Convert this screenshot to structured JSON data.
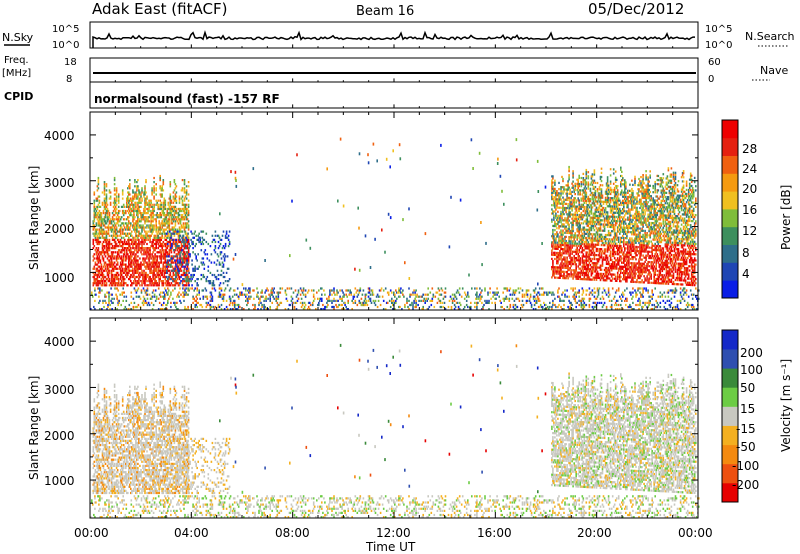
{
  "header": {
    "radar": "Adak East (fitACF)",
    "beam": "Beam 16",
    "date": "05/Dec/2012"
  },
  "top_panels": {
    "nsky_label": "N.Sky",
    "nsearch_label": "N.Search",
    "nsky_ticks": [
      "10^5",
      "10^0"
    ],
    "nsearch_ticks": [
      "10^5",
      "10^0"
    ],
    "freq_label": "Freq.",
    "freq_unit": "[MHz]",
    "freq_ticks": [
      "18",
      "8"
    ],
    "nave_label": "Nave",
    "nave_ticks": [
      "60",
      "0"
    ],
    "cpid_label": "CPID",
    "cpid_text": "normalsound (fast) -157 RF"
  },
  "chart_data": [
    {
      "type": "heatmap",
      "name": "power",
      "ylabel": "Slant Range [km]",
      "y_ticks": [
        "1000",
        "2000",
        "3000",
        "4000"
      ],
      "ylim": [
        180,
        4500
      ],
      "xlim_hours": [
        0,
        24
      ],
      "colorbar": {
        "label": "Power [dB]",
        "ticks": [
          "4",
          "8",
          "12",
          "16",
          "20",
          "24",
          "28"
        ],
        "range": [
          0,
          30
        ],
        "colors": [
          "#0a1ee6",
          "#1f46b4",
          "#2e6e8a",
          "#3d8f5e",
          "#7fbd3a",
          "#f0c020",
          "#f59a10",
          "#f06010",
          "#e52010",
          "#ee0000"
        ]
      }
    },
    {
      "type": "heatmap",
      "name": "velocity",
      "ylabel": "Slant Range [km]",
      "y_ticks": [
        "1000",
        "2000",
        "3000",
        "4000"
      ],
      "ylim": [
        180,
        4500
      ],
      "xlim_hours": [
        0,
        24
      ],
      "colorbar": {
        "label": "Velocity [m s⁻¹]",
        "ticks": [
          "200",
          "100",
          "50",
          "15",
          "-15",
          "-50",
          "-100",
          "-200"
        ],
        "colors": [
          "#1428c8",
          "#2f4fb0",
          "#3a8a3a",
          "#6ccc44",
          "#c8c8c0",
          "#f4b020",
          "#f48a10",
          "#ee5010",
          "#e60000"
        ]
      }
    }
  ],
  "x_axis": {
    "ticks": [
      "00:00",
      "04:00",
      "08:00",
      "12:00",
      "16:00",
      "20:00",
      "00:00"
    ],
    "label": "Time UT"
  }
}
